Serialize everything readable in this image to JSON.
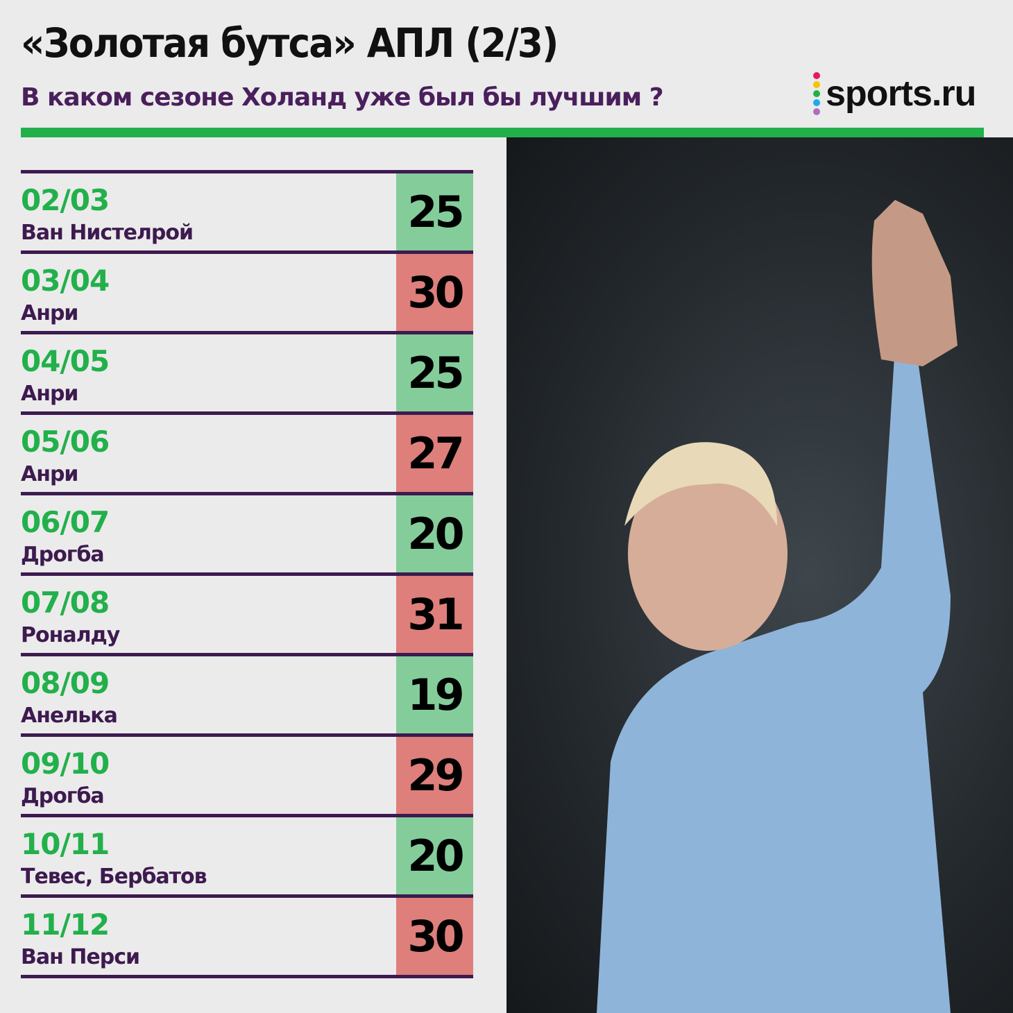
{
  "header": {
    "title": "«Золотая бутса» АПЛ (2/3)",
    "subtitle": "В каком сезоне Холанд уже был бы лучшим ?",
    "logo": "sports.ru"
  },
  "colors": {
    "accent_green": "#22b04b",
    "purple": "#3d1a4f",
    "cell_green": "#84cd9b",
    "cell_red": "#de7f7b",
    "logo_dots": [
      "#e8195a",
      "#f9c200",
      "#22b04b",
      "#1fa9ee",
      "#b06cc1"
    ]
  },
  "rows": [
    {
      "season": "02/03",
      "player": "Ван Нистелрой",
      "goals": "25",
      "status": "green"
    },
    {
      "season": "03/04",
      "player": "Анри",
      "goals": "30",
      "status": "red"
    },
    {
      "season": "04/05",
      "player": "Анри",
      "goals": "25",
      "status": "green"
    },
    {
      "season": "05/06",
      "player": "Анри",
      "goals": "27",
      "status": "red"
    },
    {
      "season": "06/07",
      "player": "Дрогба",
      "goals": "20",
      "status": "green"
    },
    {
      "season": "07/08",
      "player": "Роналду",
      "goals": "31",
      "status": "red"
    },
    {
      "season": "08/09",
      "player": "Анелька",
      "goals": "19",
      "status": "green"
    },
    {
      "season": "09/10",
      "player": "Дрогба",
      "goals": "29",
      "status": "red"
    },
    {
      "season": "10/11",
      "player": "Тевес, Бербатов",
      "goals": "20",
      "status": "green"
    },
    {
      "season": "11/12",
      "player": "Ван Перси",
      "goals": "30",
      "status": "red"
    }
  ],
  "photo": {
    "subject": "player-raising-hand"
  }
}
